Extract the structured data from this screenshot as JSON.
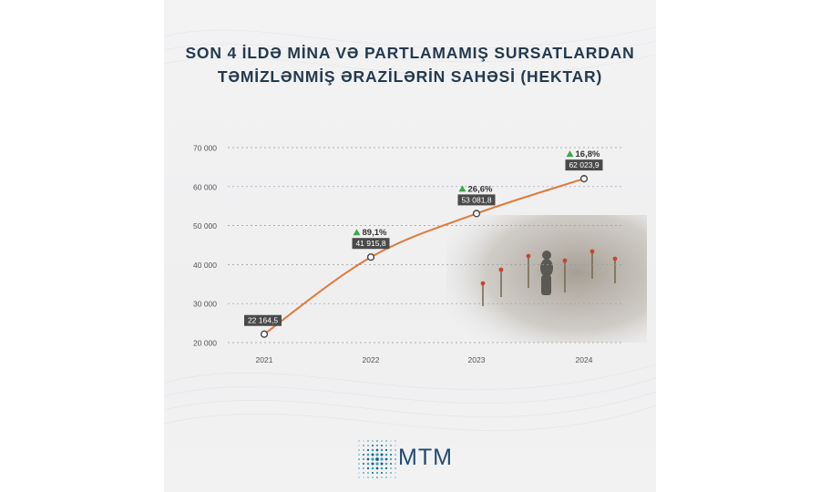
{
  "title": {
    "line1": "SON 4 İLDƏ MİNA VƏ PARTLAMAMIŞ SURSATLARDAN",
    "line2": "TƏMİZLƏNMİŞ ƏRAZİLƏRİN SAHƏSİ (HEKTAR)"
  },
  "logo": {
    "text": "MTM"
  },
  "colors": {
    "line": "#e07a3a",
    "label_bg": "#4a4a4a",
    "arrow": "#3aa84a",
    "title": "#243a4f"
  },
  "chart_data": {
    "type": "line",
    "title": "SON 4 İLDƏ MİNA VƏ PARTLAMAMIŞ SURSATLARDAN TƏMİZLƏNMİŞ ƏRAZİLƏRİN SAHƏSİ (HEKTAR)",
    "categories": [
      "2021",
      "2022",
      "2023",
      "2024"
    ],
    "values": [
      22164.5,
      41915.8,
      53081.8,
      62023.9
    ],
    "value_labels": [
      "22 164,5",
      "41 915,8",
      "53 081,8",
      "62 023,9"
    ],
    "growth_labels": [
      "",
      "89,1%",
      "26,6%",
      "16,8%"
    ],
    "ylim": [
      20000,
      70000
    ],
    "yticks": [
      20000,
      30000,
      40000,
      50000,
      60000,
      70000
    ],
    "ytick_labels": [
      "20 000",
      "30 000",
      "40 000",
      "50 000",
      "60 000",
      "70 000"
    ],
    "grid": true,
    "xlabel": "",
    "ylabel": ""
  }
}
